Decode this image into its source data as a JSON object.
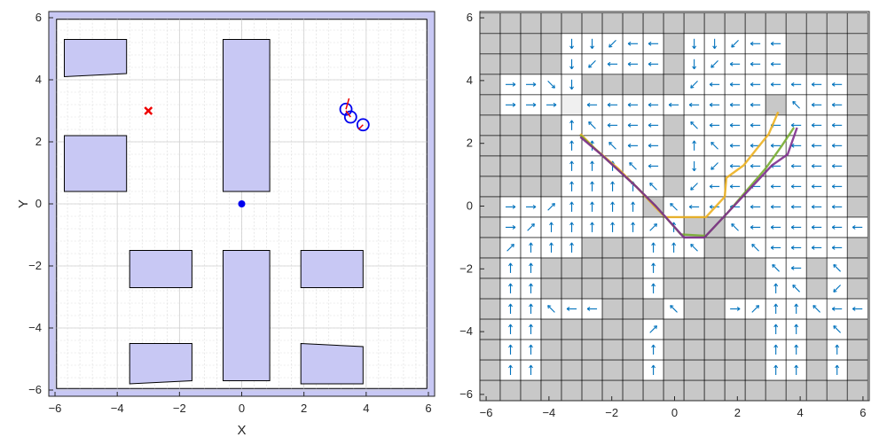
{
  "chart_data": [
    {
      "type": "scatter",
      "title": "",
      "xlabel": "X",
      "ylabel": "Y",
      "xlim": [
        -6.2,
        6.2
      ],
      "ylim": [
        -6.2,
        6.2
      ],
      "xticks": [
        -6,
        -4,
        -2,
        0,
        2,
        4,
        6
      ],
      "yticks": [
        -6,
        -4,
        -2,
        0,
        2,
        4,
        6
      ],
      "grid": "minor",
      "colors": {
        "obstacle": "#c8c8f4",
        "boundary": "#c8c8f4",
        "start": "#0000ee",
        "goal": "#ee0000",
        "agent": "#0000ee",
        "heading": "#ee0000"
      },
      "boundary_inner": {
        "x": [
          -5.95,
          5.95
        ],
        "y": [
          -5.95,
          5.95
        ]
      },
      "obstacles": [
        [
          [
            -5.7,
            5.3
          ],
          [
            -3.7,
            5.3
          ],
          [
            -3.7,
            4.2
          ],
          [
            -5.7,
            4.1
          ]
        ],
        [
          [
            -5.7,
            2.2
          ],
          [
            -3.7,
            2.2
          ],
          [
            -3.7,
            0.4
          ],
          [
            -5.7,
            0.4
          ]
        ],
        [
          [
            -0.6,
            5.3
          ],
          [
            0.9,
            5.3
          ],
          [
            0.9,
            0.4
          ],
          [
            -0.6,
            0.4
          ]
        ],
        [
          [
            -3.6,
            -1.5
          ],
          [
            -1.6,
            -1.5
          ],
          [
            -1.6,
            -2.7
          ],
          [
            -3.6,
            -2.7
          ]
        ],
        [
          [
            -0.6,
            -1.5
          ],
          [
            0.9,
            -1.5
          ],
          [
            0.9,
            -5.7
          ],
          [
            -0.6,
            -5.7
          ]
        ],
        [
          [
            1.9,
            -1.5
          ],
          [
            3.9,
            -1.5
          ],
          [
            3.9,
            -2.7
          ],
          [
            1.9,
            -2.7
          ]
        ],
        [
          [
            -3.6,
            -4.5
          ],
          [
            -1.6,
            -4.5
          ],
          [
            -1.6,
            -5.7
          ],
          [
            -3.6,
            -5.8
          ]
        ],
        [
          [
            1.9,
            -4.5
          ],
          [
            3.9,
            -4.6
          ],
          [
            3.9,
            -5.8
          ],
          [
            1.9,
            -5.8
          ]
        ]
      ],
      "start": [
        0,
        0
      ],
      "goal": [
        -3,
        3
      ],
      "agents": [
        {
          "x": 3.35,
          "y": 3.05,
          "heading": [
            0.1,
            0.35
          ]
        },
        {
          "x": 3.5,
          "y": 2.8,
          "heading": [
            -0.15,
            0.2
          ]
        },
        {
          "x": 3.9,
          "y": 2.55,
          "heading": [
            -0.15,
            -0.15
          ]
        }
      ]
    },
    {
      "type": "heatmap",
      "title": "",
      "xlabel": "",
      "ylabel": "",
      "xlim": [
        -6.2,
        6.2
      ],
      "ylim": [
        -6.2,
        6.2
      ],
      "xticks": [
        -6,
        -4,
        -2,
        0,
        2,
        4,
        6
      ],
      "yticks": [
        -6,
        -4,
        -2,
        0,
        2,
        4,
        6
      ],
      "cell_size": 0.65,
      "grid_origin": [
        -6.2,
        -6.2
      ],
      "grid_rows_bottom_to_top": [
        "###################",
        "#..#####.#####..#.#",
        "#..#####.#####..#.#",
        "#..#####.#####..#.#",
        "#.....###.##.......",
        "#..#####.#####..#.#",
        "#..#####.#####..#.#",
        "#....###...##.....#",
        "#.........##.......",
        "#.......#.........#",
        "####.....#........#",
        "####.....#........#",
        "####.....#........#",
        "####.....#........#",
        "#.............#...#",
        "#....#####........#",
        "####.....#.....####",
        "####.....#.....####",
        "###################"
      ],
      "colors": {
        "blocked": "#c8c8c8",
        "free": "#ffffff",
        "grid": "#000000",
        "arrow": "#0072bd",
        "goal_cell": "#f0f0f0"
      },
      "goal_cell": [
        -3,
        3
      ],
      "paths": [
        {
          "color": "#edb120",
          "points": [
            [
              -3,
              2.3
            ],
            [
              -2.5,
              1.8
            ],
            [
              -1.8,
              1.2
            ],
            [
              -1.2,
              0.6
            ],
            [
              -0.6,
              -0.05
            ],
            [
              -0.3,
              -0.35
            ],
            [
              1.0,
              -0.35
            ],
            [
              1.6,
              0.3
            ],
            [
              1.65,
              0.9
            ],
            [
              2.2,
              1.3
            ],
            [
              2.6,
              1.8
            ],
            [
              3.0,
              2.3
            ],
            [
              3.3,
              3.0
            ]
          ]
        },
        {
          "color": "#77ac30",
          "points": [
            [
              -3,
              2.25
            ],
            [
              -2.4,
              1.7
            ],
            [
              -1.8,
              1.15
            ],
            [
              -1.2,
              0.6
            ],
            [
              -0.6,
              0.0
            ],
            [
              0.2,
              -0.9
            ],
            [
              1.0,
              -0.95
            ],
            [
              1.7,
              -0.2
            ],
            [
              2.3,
              0.5
            ],
            [
              2.9,
              1.2
            ],
            [
              3.4,
              1.9
            ],
            [
              3.8,
              2.5
            ]
          ]
        },
        {
          "color": "#7e2f8e",
          "points": [
            [
              -3,
              2.2
            ],
            [
              -2.4,
              1.7
            ],
            [
              -1.8,
              1.15
            ],
            [
              -1.2,
              0.6
            ],
            [
              -0.6,
              0.0
            ],
            [
              0.3,
              -1.0
            ],
            [
              0.95,
              -1.0
            ],
            [
              1.7,
              -0.2
            ],
            [
              2.4,
              0.55
            ],
            [
              3.1,
              1.3
            ],
            [
              3.6,
              1.65
            ],
            [
              3.9,
              2.5
            ]
          ]
        }
      ]
    }
  ]
}
